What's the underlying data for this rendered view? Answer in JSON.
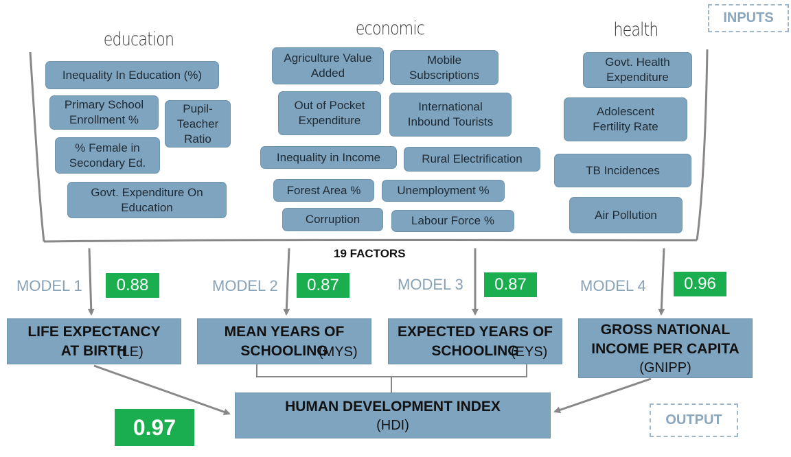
{
  "tags": {
    "inputs": "INPUTS",
    "output": "OUTPUT"
  },
  "categories": {
    "education": "education",
    "economic": "economic",
    "health": "health"
  },
  "factors": {
    "education": [
      "Inequality In Education (%)",
      "Primary School Enrollment %",
      "Pupil-Teacher Ratio",
      "% Female in Secondary Ed.",
      "Govt. Expenditure On Education"
    ],
    "economic": [
      "Agriculture Value Added",
      "Mobile Subscriptions",
      "Out of Pocket Expenditure",
      "International Inbound Tourists",
      "Inequality in Income",
      "Rural Electrification",
      "Forest Area %",
      "Unemployment %",
      "Corruption",
      "Labour Force %"
    ],
    "health": [
      "Govt. Health Expenditure",
      "Adolescent Fertility Rate",
      "TB Incidences",
      "Air Pollution"
    ]
  },
  "factor_count_label": "19 FACTORS",
  "models": [
    {
      "label": "MODEL 1",
      "score": "0.88",
      "target_title": "LIFE EXPECTANCY AT BIRTH",
      "target_abbr": "(LE)"
    },
    {
      "label": "MODEL 2",
      "score": "0.87",
      "target_title": "MEAN YEARS OF SCHOOLING",
      "target_abbr": "(MYS)"
    },
    {
      "label": "MODEL 3",
      "score": "0.87",
      "target_title": "EXPECTED YEARS OF SCHOOLING",
      "target_abbr": "(EYS)"
    },
    {
      "label": "MODEL 4",
      "score": "0.96",
      "target_title": "GROSS NATIONAL INCOME PER CAPITA",
      "target_abbr": "(GNIPP)"
    }
  ],
  "output": {
    "title": "HUMAN DEVELOPMENT INDEX",
    "abbr": "(HDI)",
    "score": "0.97"
  },
  "colors": {
    "box": "#7ea4bf",
    "score": "#1aae4e",
    "line": "#888888",
    "tag": "#8aa6bc"
  }
}
